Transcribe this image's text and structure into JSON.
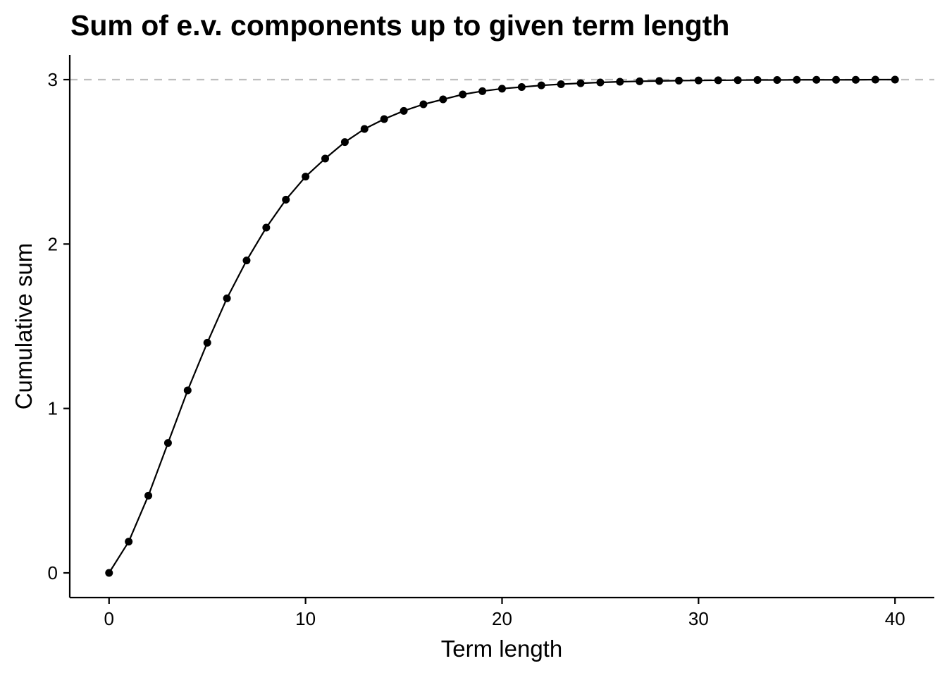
{
  "chart_data": {
    "type": "line",
    "title": "Sum of e.v. components up to given term length",
    "xlabel": "Term length",
    "ylabel": "Cumulative sum",
    "xlim": [
      -2,
      42
    ],
    "ylim": [
      -0.15,
      3.15
    ],
    "x_ticks": [
      0,
      10,
      20,
      30,
      40
    ],
    "y_ticks": [
      0,
      1,
      2,
      3
    ],
    "x_tick_labels": [
      "0",
      "10",
      "20",
      "30",
      "40"
    ],
    "y_tick_labels": [
      "0",
      "1",
      "2",
      "3"
    ],
    "reference_line": {
      "y": 3,
      "style": "dashed",
      "color": "#bebebe"
    },
    "grid": false,
    "legend": "none",
    "colors": {
      "series": "#000000",
      "reference": "#bebebe"
    },
    "series": [
      {
        "x": [
          0,
          1,
          2,
          3,
          4,
          5,
          6,
          7,
          8,
          9,
          10,
          11,
          12,
          13,
          14,
          15,
          16,
          17,
          18,
          19,
          20,
          21,
          22,
          23,
          24,
          25,
          26,
          27,
          28,
          29,
          30,
          31,
          32,
          33,
          34,
          35,
          36,
          37,
          38,
          39,
          40
        ],
        "values": [
          0,
          0.19,
          0.47,
          0.79,
          1.11,
          1.4,
          1.67,
          1.9,
          2.1,
          2.27,
          2.41,
          2.52,
          2.62,
          2.7,
          2.76,
          2.81,
          2.85,
          2.88,
          2.91,
          2.93,
          2.945,
          2.955,
          2.965,
          2.972,
          2.978,
          2.983,
          2.987,
          2.99,
          2.992,
          2.994,
          2.995,
          2.996,
          2.997,
          2.998,
          2.998,
          2.999,
          2.999,
          2.999,
          2.999,
          3.0,
          3.0
        ]
      }
    ]
  }
}
